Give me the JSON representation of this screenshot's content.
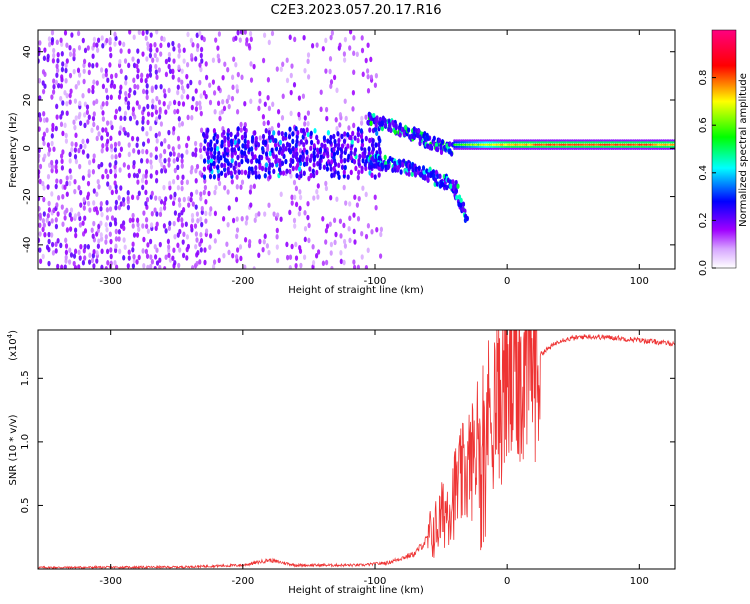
{
  "title": "C2E3.2023.057.20.17.R16",
  "chart_data": [
    {
      "type": "heatmap",
      "xlabel": "Height of straight line (km)",
      "ylabel": "Frequency (Hz)",
      "xlim": [
        -355,
        127
      ],
      "ylim": [
        -50,
        49
      ],
      "xticks": [
        -300,
        -200,
        -100,
        0,
        100
      ],
      "yticks": [
        -40,
        -20,
        0,
        20,
        40
      ],
      "colorbar": {
        "label": "Normalized spectral amplitude",
        "range": [
          0.0,
          1.0
        ],
        "ticks": [
          "0.0",
          "0.2",
          "0.4",
          "0.6",
          "0.8"
        ],
        "colors": [
          "#ffffff",
          "#a000ff",
          "#0000ff",
          "#00ffff",
          "#00ff00",
          "#ffff00",
          "#ff0000",
          "#ff0080"
        ]
      },
      "features": {
        "line_center_hz": 1.5,
        "noise_region_x": [
          -355,
          -95
        ],
        "band_x": [
          -230,
          -95
        ],
        "band_freq_range": [
          -12,
          8
        ],
        "branch_upper": [
          [
            -105,
            12
          ],
          [
            -80,
            8
          ],
          [
            -60,
            3
          ],
          [
            -40,
            -1
          ]
        ],
        "branch_lower": [
          [
            -105,
            -5
          ],
          [
            -75,
            -8
          ],
          [
            -55,
            -12
          ],
          [
            -40,
            -16
          ],
          [
            -30,
            -30
          ]
        ],
        "line_x": [
          -40,
          127
        ]
      }
    },
    {
      "type": "line",
      "xlabel": "Height of straight line (km)",
      "ylabel": "SNR (10 * v/v)",
      "exponent_label": "(x10",
      "exponent_power": "4",
      "exponent_close": ")",
      "xlim": [
        -355,
        127
      ],
      "ylim": [
        0,
        1.88
      ],
      "xticks": [
        -300,
        -200,
        -100,
        0,
        100
      ],
      "yticks": [
        "0.5",
        "1.0",
        "1.5"
      ],
      "color": "#ee3333",
      "profile": [
        [
          -355,
          0.012
        ],
        [
          -250,
          0.015
        ],
        [
          -200,
          0.03
        ],
        [
          -180,
          0.07
        ],
        [
          -160,
          0.03
        ],
        [
          -110,
          0.03
        ],
        [
          -90,
          0.05
        ],
        [
          -70,
          0.12
        ],
        [
          -55,
          0.3
        ],
        [
          -45,
          0.5
        ],
        [
          -35,
          0.7
        ],
        [
          -25,
          0.9
        ],
        [
          -15,
          1.2
        ],
        [
          -5,
          1.35
        ],
        [
          5,
          1.5
        ],
        [
          20,
          1.65
        ],
        [
          40,
          1.8
        ],
        [
          60,
          1.83
        ],
        [
          80,
          1.82
        ],
        [
          100,
          1.8
        ],
        [
          127,
          1.77
        ]
      ]
    }
  ]
}
